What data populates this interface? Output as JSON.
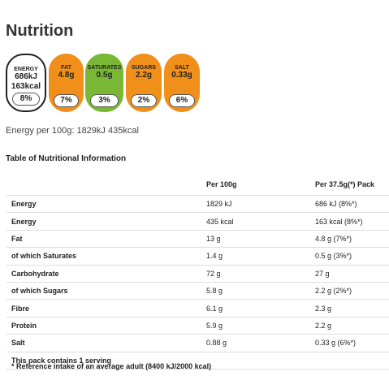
{
  "header": {
    "title": "Nutrition"
  },
  "badges": [
    {
      "label": "ENERGY",
      "values": [
        "686kJ",
        "163kcal"
      ],
      "percent": "8%",
      "level": "none"
    },
    {
      "label": "FAT",
      "values": [
        "4.8g"
      ],
      "percent": "7%",
      "level": "medium"
    },
    {
      "label": "SATURATES",
      "values": [
        "0.5g"
      ],
      "percent": "3%",
      "level": "low"
    },
    {
      "label": "SUGARS",
      "values": [
        "2.2g"
      ],
      "percent": "2%",
      "level": "medium"
    },
    {
      "label": "SALT",
      "values": [
        "0.33g"
      ],
      "percent": "6%",
      "level": "medium"
    }
  ],
  "energy_note": "Energy per 100g: 1829kJ 435kcal",
  "table": {
    "title": "Table of Nutritional Information",
    "columns": [
      "Per 100g",
      "Per 37.5g(*) Pack"
    ],
    "rows": [
      [
        "Energy",
        "1829 kJ",
        "686 kJ (8%*)"
      ],
      [
        "Energy",
        "435 kcal",
        "163 kcal (8%*)"
      ],
      [
        "Fat",
        "13 g",
        "4.8 g (7%*)"
      ],
      [
        "of which Saturates",
        "1.4 g",
        "0.5 g (3%*)"
      ],
      [
        "Carbohydrate",
        "72 g",
        "27 g"
      ],
      [
        "of which Sugars",
        "5.8 g",
        "2.2 g (2%*)"
      ],
      [
        "Fibre",
        "6.1 g",
        "2.3 g"
      ],
      [
        "Protein",
        "5.9 g",
        "2.2 g"
      ],
      [
        "Salt",
        "0.88 g",
        "0.33 g (6%*)"
      ]
    ],
    "serving": "This pack contains 1 serving",
    "footnote": "* Reference intake of an average adult (8400 kJ/2000 kcal)"
  }
}
